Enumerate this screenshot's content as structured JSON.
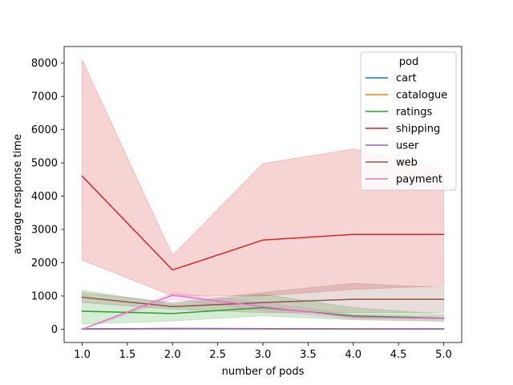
{
  "chart_data": {
    "type": "line",
    "title": "",
    "xlabel": "number of pods",
    "ylabel": "average response time",
    "x": [
      1.0,
      2.0,
      3.0,
      4.0,
      5.0
    ],
    "xlim": [
      0.8,
      5.2
    ],
    "ylim": [
      -400,
      8500
    ],
    "xticks": [
      "1.0",
      "1.5",
      "2.0",
      "2.5",
      "3.0",
      "3.5",
      "4.0",
      "4.5",
      "5.0"
    ],
    "yticks": [
      "0",
      "1000",
      "2000",
      "3000",
      "4000",
      "5000",
      "6000",
      "7000",
      "8000"
    ],
    "grid": false,
    "legend": {
      "title": "pod",
      "placement": "top-right"
    },
    "series": [
      {
        "name": "cart",
        "color": "#1f77b4",
        "values": [
          10,
          20,
          15,
          10,
          10
        ],
        "lower": [
          0,
          5,
          5,
          5,
          5
        ],
        "upper": [
          20,
          35,
          25,
          20,
          20
        ]
      },
      {
        "name": "catalogue",
        "color": "#ff7f0e",
        "values": [
          5,
          10,
          10,
          8,
          8
        ],
        "lower": [
          0,
          0,
          0,
          0,
          0
        ],
        "upper": [
          15,
          20,
          20,
          15,
          15
        ]
      },
      {
        "name": "ratings",
        "color": "#2ca02c",
        "values": [
          540,
          470,
          650,
          400,
          330
        ],
        "lower": [
          150,
          250,
          400,
          280,
          240
        ],
        "upper": [
          1170,
          750,
          1050,
          650,
          450
        ]
      },
      {
        "name": "shipping",
        "color": "#d62728",
        "values": [
          4600,
          1780,
          2680,
          2850,
          2850
        ],
        "lower": [
          2080,
          1000,
          1000,
          1200,
          1300
        ],
        "upper": [
          8100,
          2220,
          4980,
          5420,
          4800
        ]
      },
      {
        "name": "user",
        "color": "#9467bd",
        "values": [
          0,
          20,
          10,
          5,
          5
        ],
        "lower": [
          0,
          5,
          5,
          0,
          0
        ],
        "upper": [
          10,
          35,
          20,
          15,
          15
        ]
      },
      {
        "name": "web",
        "color": "#8c564b",
        "values": [
          960,
          680,
          800,
          900,
          900
        ],
        "lower": [
          800,
          600,
          500,
          500,
          500
        ],
        "upper": [
          1100,
          800,
          1100,
          1380,
          1250
        ]
      },
      {
        "name": "payment",
        "color": "#e377c2",
        "values": [
          0,
          1020,
          680,
          360,
          320
        ],
        "lower": [
          0,
          900,
          550,
          300,
          250
        ],
        "upper": [
          0,
          1100,
          800,
          450,
          400
        ]
      }
    ]
  }
}
